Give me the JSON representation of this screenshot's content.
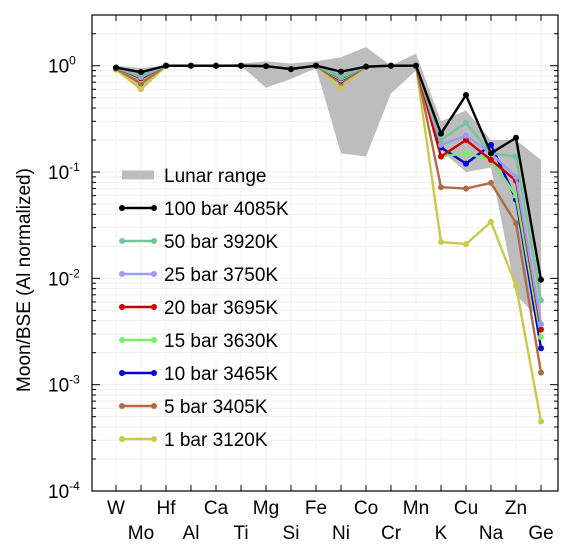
{
  "chart_data": {
    "type": "line",
    "ylabel": "Moon/BSE (Al  normalized)",
    "yscale": "log",
    "ylim": [
      0.0001,
      3
    ],
    "yticks": [
      {
        "value": 1,
        "base": "10",
        "exp": "0"
      },
      {
        "value": 0.1,
        "base": "10",
        "exp": "-1"
      },
      {
        "value": 0.01,
        "base": "10",
        "exp": "-2"
      },
      {
        "value": 0.001,
        "base": "10",
        "exp": "-3"
      },
      {
        "value": 0.0001,
        "base": "10",
        "exp": "-4"
      }
    ],
    "categories": [
      "W",
      "Mo",
      "Hf",
      "Al",
      "Ca",
      "Ti",
      "Mg",
      "Si",
      "Fe",
      "Ni",
      "Co",
      "Cr",
      "Mn",
      "K",
      "Cu",
      "Na",
      "Zn",
      "Ge"
    ],
    "grid": false,
    "legend_position": "center-left",
    "lunar_range": {
      "name": "Lunar range",
      "color": "#bdbdbd",
      "upper": [
        1.0,
        0.95,
        1.0,
        1.0,
        1.0,
        1.05,
        1.1,
        1.05,
        1.1,
        1.2,
        1.5,
        1.0,
        1.3,
        0.3,
        0.38,
        0.2,
        0.2,
        0.13
      ],
      "lower": [
        0.9,
        0.6,
        1.0,
        1.0,
        1.0,
        1.0,
        0.62,
        0.75,
        0.95,
        0.15,
        0.14,
        0.55,
        0.9,
        0.16,
        0.1,
        0.11,
        0.007,
        0.004
      ]
    },
    "series": [
      {
        "name": "100 bar 4085K",
        "color": "#000000",
        "values": [
          0.96,
          0.87,
          1.0,
          1.0,
          1.0,
          1.0,
          0.99,
          0.93,
          1.0,
          0.88,
          0.98,
          1.0,
          1.0,
          0.23,
          0.53,
          0.15,
          0.21,
          0.0097
        ]
      },
      {
        "name": "50 bar 3920K",
        "color": "#74c69a",
        "values": [
          0.96,
          0.82,
          1.0,
          1.0,
          1.0,
          1.0,
          0.99,
          0.93,
          1.0,
          0.8,
          0.98,
          1.0,
          1.0,
          0.2,
          0.29,
          0.15,
          0.14,
          0.0062
        ]
      },
      {
        "name": "25 bar 3750K",
        "color": "#9a9cf5",
        "values": [
          0.96,
          0.78,
          1.0,
          1.0,
          1.0,
          1.0,
          0.99,
          0.93,
          1.0,
          0.77,
          0.98,
          1.0,
          1.0,
          0.18,
          0.22,
          0.15,
          0.09,
          0.0037
        ]
      },
      {
        "name": "20 bar 3695K",
        "color": "#cc0000",
        "values": [
          0.96,
          0.76,
          1.0,
          1.0,
          1.0,
          1.0,
          0.99,
          0.93,
          1.0,
          0.76,
          0.98,
          1.0,
          1.0,
          0.14,
          0.2,
          0.13,
          0.083,
          0.0033
        ]
      },
      {
        "name": "15 bar 3630K",
        "color": "#77ee66",
        "values": [
          0.96,
          0.74,
          1.0,
          1.0,
          1.0,
          1.0,
          0.99,
          0.93,
          1.0,
          0.74,
          0.98,
          1.0,
          1.0,
          0.14,
          0.15,
          0.13,
          0.06,
          0.0028
        ]
      },
      {
        "name": "10 bar 3465K",
        "color": "#0000dd",
        "values": [
          0.96,
          0.74,
          1.0,
          1.0,
          1.0,
          1.0,
          0.99,
          0.93,
          1.0,
          0.73,
          0.98,
          1.0,
          1.0,
          0.17,
          0.12,
          0.18,
          0.055,
          0.0022
        ]
      },
      {
        "name": "5 bar 3405K",
        "color": "#b06a44",
        "values": [
          0.94,
          0.68,
          1.0,
          1.0,
          1.0,
          1.0,
          0.99,
          0.93,
          1.0,
          0.69,
          0.98,
          1.0,
          1.0,
          0.072,
          0.07,
          0.079,
          0.033,
          0.0013
        ]
      },
      {
        "name": "1 bar 3120K",
        "color": "#c9c94a",
        "values": [
          0.92,
          0.6,
          1.0,
          1.0,
          1.0,
          1.0,
          0.99,
          0.93,
          1.0,
          0.62,
          0.98,
          1.0,
          1.0,
          0.022,
          0.021,
          0.034,
          0.0085,
          0.00045
        ]
      }
    ]
  }
}
